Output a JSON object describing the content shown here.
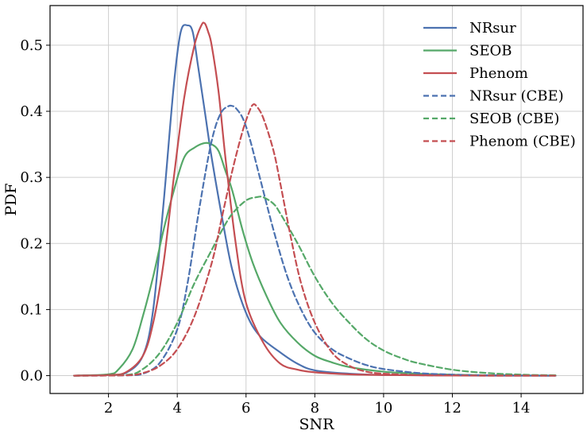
{
  "chart_data": {
    "type": "line",
    "title": "",
    "xlabel": "SNR",
    "ylabel": "PDF",
    "xlim": [
      0.3,
      15.8
    ],
    "ylim": [
      -0.027,
      0.56
    ],
    "xticks": [
      2,
      4,
      6,
      8,
      10,
      12,
      14
    ],
    "yticks": [
      0.0,
      0.1,
      0.2,
      0.3,
      0.4,
      0.5
    ],
    "xtick_labels": [
      "2",
      "4",
      "6",
      "8",
      "10",
      "12",
      "14"
    ],
    "ytick_labels": [
      "0.0",
      "0.1",
      "0.2",
      "0.3",
      "0.4",
      "0.5"
    ],
    "grid": true,
    "legend_position": "top-right",
    "series": [
      {
        "name": "NRsur",
        "color": "#4c72b0",
        "style": "solid",
        "x": [
          1,
          2,
          2.5,
          3,
          3.3,
          3.6,
          3.9,
          4.1,
          4.3,
          4.45,
          4.6,
          4.8,
          5.0,
          5.3,
          5.6,
          6.0,
          6.4,
          7.0,
          7.5,
          8.0,
          9.0,
          10,
          12,
          15
        ],
        "y": [
          0,
          0.001,
          0.004,
          0.03,
          0.1,
          0.26,
          0.44,
          0.52,
          0.53,
          0.52,
          0.47,
          0.4,
          0.33,
          0.24,
          0.16,
          0.095,
          0.06,
          0.035,
          0.018,
          0.008,
          0.003,
          0.001,
          0.0002,
          0
        ]
      },
      {
        "name": "SEOB",
        "color": "#55a868",
        "style": "solid",
        "x": [
          1,
          2,
          2.3,
          2.7,
          3.0,
          3.3,
          3.6,
          3.9,
          4.2,
          4.5,
          4.8,
          5.0,
          5.2,
          5.4,
          5.6,
          5.9,
          6.2,
          6.6,
          7.0,
          7.5,
          8.0,
          8.5,
          9.0,
          10,
          11,
          12,
          13,
          15
        ],
        "y": [
          0,
          0.002,
          0.01,
          0.04,
          0.09,
          0.15,
          0.22,
          0.28,
          0.33,
          0.345,
          0.352,
          0.35,
          0.34,
          0.31,
          0.28,
          0.22,
          0.17,
          0.12,
          0.08,
          0.05,
          0.03,
          0.02,
          0.013,
          0.006,
          0.003,
          0.0015,
          0.0005,
          0
        ]
      },
      {
        "name": "Phenom",
        "color": "#c44e52",
        "style": "solid",
        "x": [
          1,
          2,
          2.5,
          3,
          3.3,
          3.6,
          3.9,
          4.2,
          4.5,
          4.7,
          4.8,
          4.9,
          5.0,
          5.2,
          5.4,
          5.7,
          6.0,
          6.5,
          7.0,
          7.5,
          8.0,
          9.0,
          10,
          12,
          15
        ],
        "y": [
          0,
          0.001,
          0.005,
          0.03,
          0.08,
          0.17,
          0.3,
          0.42,
          0.5,
          0.53,
          0.533,
          0.52,
          0.5,
          0.43,
          0.33,
          0.2,
          0.11,
          0.05,
          0.018,
          0.009,
          0.005,
          0.002,
          0.001,
          0.0002,
          0
        ]
      },
      {
        "name": "NRsur (CBE)",
        "color": "#4c72b0",
        "style": "dashed",
        "x": [
          1,
          2.5,
          3.0,
          3.5,
          4.0,
          4.3,
          4.6,
          4.9,
          5.1,
          5.3,
          5.5,
          5.6,
          5.7,
          5.9,
          6.1,
          6.4,
          6.8,
          7.2,
          7.6,
          8.0,
          8.5,
          9.0,
          9.5,
          10,
          11,
          12,
          13,
          15
        ],
        "y": [
          0,
          0.0005,
          0.003,
          0.02,
          0.07,
          0.14,
          0.24,
          0.33,
          0.375,
          0.4,
          0.408,
          0.408,
          0.405,
          0.39,
          0.36,
          0.3,
          0.22,
          0.15,
          0.1,
          0.065,
          0.04,
          0.026,
          0.016,
          0.01,
          0.004,
          0.0015,
          0.0005,
          0
        ]
      },
      {
        "name": "SEOB (CBE)",
        "color": "#55a868",
        "style": "dashed",
        "x": [
          1,
          2.5,
          3.0,
          3.5,
          4.0,
          4.5,
          5.0,
          5.3,
          5.6,
          6.0,
          6.3,
          6.5,
          6.8,
          7.0,
          7.5,
          8.0,
          8.5,
          9.0,
          9.5,
          10,
          10.5,
          11,
          12,
          13,
          14,
          15
        ],
        "y": [
          0,
          0.001,
          0.01,
          0.035,
          0.08,
          0.14,
          0.19,
          0.22,
          0.245,
          0.265,
          0.27,
          0.27,
          0.26,
          0.245,
          0.2,
          0.15,
          0.11,
          0.08,
          0.055,
          0.038,
          0.027,
          0.019,
          0.009,
          0.004,
          0.0015,
          0.0005
        ]
      },
      {
        "name": "Phenom (CBE)",
        "color": "#c44e52",
        "style": "dashed",
        "x": [
          1,
          2.5,
          3.0,
          3.5,
          4.0,
          4.5,
          5.0,
          5.3,
          5.6,
          5.9,
          6.1,
          6.2,
          6.3,
          6.5,
          6.8,
          7.0,
          7.3,
          7.6,
          8.0,
          8.5,
          9.0,
          9.5,
          10,
          11,
          12,
          15
        ],
        "y": [
          0,
          0.0005,
          0.004,
          0.015,
          0.04,
          0.09,
          0.17,
          0.24,
          0.31,
          0.37,
          0.4,
          0.41,
          0.408,
          0.39,
          0.34,
          0.29,
          0.21,
          0.14,
          0.08,
          0.035,
          0.015,
          0.006,
          0.003,
          0.0008,
          0.0002,
          0
        ]
      }
    ]
  }
}
